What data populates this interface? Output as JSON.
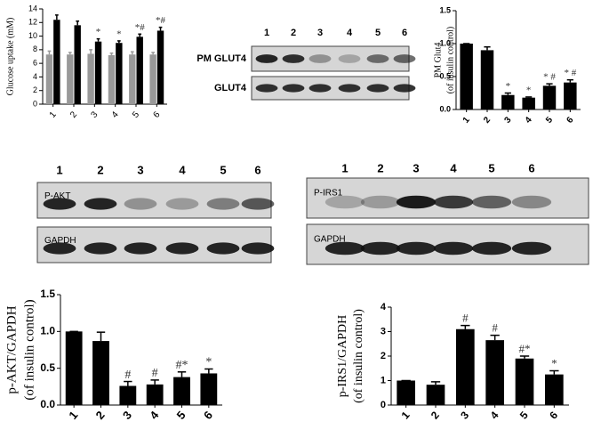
{
  "chart_data": [
    {
      "type": "bar",
      "ylabel": [
        "Glucose uptake (mM)"
      ],
      "categories": [
        "1",
        "2",
        "3",
        "4",
        "5",
        "6"
      ],
      "series": [
        {
          "color": "#999999",
          "values": [
            7.3,
            7.3,
            7.4,
            7.2,
            7.3,
            7.3
          ],
          "errors": [
            0.5,
            0.3,
            0.6,
            0.3,
            0.4,
            0.3
          ]
        },
        {
          "color": "#000000",
          "values": [
            12.4,
            11.6,
            9.2,
            9.0,
            9.9,
            10.8
          ],
          "errors": [
            0.7,
            0.6,
            0.4,
            0.3,
            0.4,
            0.5
          ]
        }
      ],
      "annotations": [
        null,
        null,
        "*",
        "*",
        "*#",
        "*#"
      ],
      "ylim": [
        0,
        14
      ],
      "yticks": [
        0,
        2,
        4,
        6,
        8,
        10,
        12,
        14
      ]
    },
    {
      "type": "bar",
      "ylabel": [
        "PM Glut4",
        "(of insulin control)"
      ],
      "categories": [
        "1",
        "2",
        "3",
        "4",
        "5",
        "6"
      ],
      "series": [
        {
          "color": "#000000",
          "values": [
            1.0,
            0.9,
            0.22,
            0.18,
            0.36,
            0.41
          ],
          "errors": [
            0,
            0.05,
            0.03,
            0.01,
            0.03,
            0.04
          ]
        }
      ],
      "annotations": [
        null,
        null,
        "*",
        "*",
        "* #",
        "* #"
      ],
      "ylim": [
        0,
        1.5
      ],
      "yticks": [
        {
          "value": 0,
          "label": "0.0"
        },
        {
          "value": 0.5,
          "label": "0.5"
        },
        {
          "value": 1,
          "label": "1.0"
        },
        {
          "value": 1.5,
          "label": "1.5"
        }
      ]
    },
    {
      "type": "bar",
      "ylabel": [
        "p-AKT/GAPDH",
        "(of insulin control)"
      ],
      "categories": [
        "1",
        "2",
        "3",
        "4",
        "5",
        "6"
      ],
      "series": [
        {
          "color": "#000000",
          "values": [
            1.0,
            0.87,
            0.26,
            0.28,
            0.38,
            0.43
          ],
          "errors": [
            0,
            0.12,
            0.06,
            0.06,
            0.07,
            0.06
          ]
        }
      ],
      "annotations": [
        null,
        null,
        "#",
        "#",
        "#*",
        "*"
      ],
      "ylim": [
        0,
        1.5
      ],
      "yticks": [
        {
          "value": 0,
          "label": "0.0"
        },
        {
          "value": 0.5,
          "label": "0.5"
        },
        {
          "value": 1,
          "label": "1.0"
        },
        {
          "value": 1.5,
          "label": "1.5"
        }
      ]
    },
    {
      "type": "bar",
      "ylabel": [
        "p-IRS1/GAPDH",
        "(of insulin control)"
      ],
      "categories": [
        "1",
        "2",
        "3",
        "4",
        "5",
        "6"
      ],
      "series": [
        {
          "color": "#000000",
          "values": [
            1.0,
            0.83,
            3.1,
            2.65,
            1.9,
            1.25
          ],
          "errors": [
            0,
            0.12,
            0.15,
            0.2,
            0.1,
            0.15
          ]
        }
      ],
      "annotations": [
        null,
        null,
        "#",
        "#",
        "#*",
        "*"
      ],
      "ylim": [
        0,
        4
      ],
      "yticks": [
        0,
        1,
        2,
        3,
        4
      ]
    }
  ],
  "blots": [
    {
      "lanes": [
        "1",
        "2",
        "3",
        "4",
        "5",
        "6"
      ],
      "rows": [
        "PM GLUT4",
        "GLUT4"
      ]
    },
    {
      "lanes": [
        "1",
        "2",
        "3",
        "4",
        "5",
        "6"
      ],
      "rows": [
        "P-AKT",
        "GAPDH"
      ]
    },
    {
      "lanes": [
        "1",
        "2",
        "3",
        "4",
        "5",
        "6"
      ],
      "rows": [
        "P-IRS1",
        "GAPDH"
      ]
    }
  ]
}
